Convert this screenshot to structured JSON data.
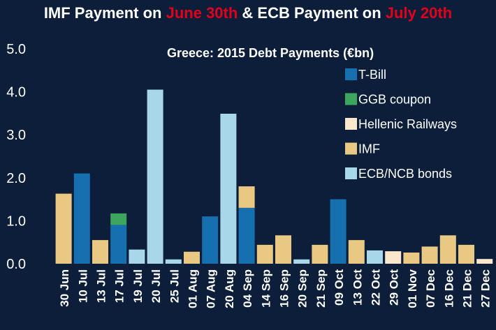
{
  "headline": {
    "part1": "IMF Payment on ",
    "part2": "June 30th",
    "part3": " & ECB Payment on ",
    "part4": "July 20th"
  },
  "colors": {
    "background": "#0d1e3a",
    "highlight": "#e0001b",
    "tbill": "#1670b0",
    "ggb": "#3ea55e",
    "railways": "#fbe7cc",
    "imf": "#e8c882",
    "ecb": "#a7d7e8"
  },
  "chart_data": {
    "type": "bar",
    "stacked": true,
    "title": "Greece: 2015  Debt Payments (€bn)",
    "xlabel": "",
    "ylabel": "",
    "ylim": [
      0,
      5
    ],
    "yticks": [
      "0.0",
      "1.0",
      "2.0",
      "3.0",
      "4.0",
      "5.0"
    ],
    "grid": false,
    "legend_position": "top-right",
    "categories": [
      "30 Jun",
      "10 Jul",
      "13 Jul",
      "17 Jul",
      "19 Jul",
      "20 Jul",
      "25 Jul",
      "01 Aug",
      "07 Aug",
      "20 Aug",
      "04 Sep",
      "14 Sep",
      "16 Sep",
      "20 Sep",
      "21 Sep",
      "09 Oct",
      "13 Oct",
      "22 Oct",
      "29 Oct",
      "01 Nov",
      "07 Dec",
      "16 Dec",
      "21 Dec",
      "27 Dec"
    ],
    "series": [
      {
        "name": "T-Bill",
        "color": "#1670b0",
        "values": [
          0,
          2.1,
          0,
          0.9,
          0,
          0,
          0,
          0,
          1.1,
          0,
          1.3,
          0,
          0,
          0,
          0,
          1.5,
          0,
          0,
          0,
          0,
          0,
          0,
          0,
          0
        ]
      },
      {
        "name": "GGB coupon",
        "color": "#3ea55e",
        "values": [
          0,
          0,
          0,
          0.27,
          0,
          0,
          0,
          0,
          0,
          0,
          0,
          0,
          0,
          0,
          0,
          0,
          0,
          0,
          0,
          0,
          0,
          0,
          0,
          0
        ]
      },
      {
        "name": "Hellenic Railways",
        "color": "#fbe7cc",
        "values": [
          0,
          0,
          0,
          0,
          0,
          0,
          0,
          0,
          0,
          0,
          0,
          0,
          0,
          0,
          0,
          0,
          0,
          0,
          0.29,
          0,
          0,
          0,
          0,
          0.11
        ]
      },
      {
        "name": "IMF",
        "color": "#e8c882",
        "values": [
          1.63,
          0,
          0.55,
          0,
          0,
          0,
          0,
          0.28,
          0,
          0,
          0.5,
          0.44,
          0.66,
          0,
          0.44,
          0,
          0.55,
          0,
          0,
          0.26,
          0.4,
          0.66,
          0.44,
          0
        ]
      },
      {
        "name": "ECB/NCB bonds",
        "color": "#a7d7e8",
        "values": [
          0,
          0,
          0,
          0,
          0.33,
          4.05,
          0.1,
          0,
          0,
          3.49,
          0,
          0,
          0,
          0.1,
          0,
          0,
          0,
          0.31,
          0,
          0,
          0,
          0,
          0,
          0
        ]
      }
    ]
  }
}
